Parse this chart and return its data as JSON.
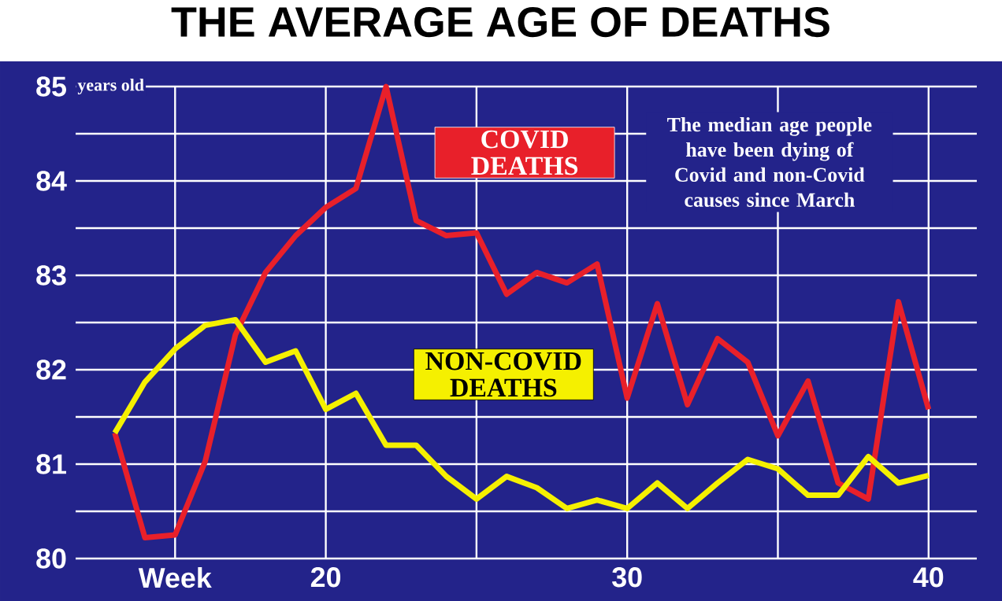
{
  "chart_data": {
    "type": "line",
    "title": "THE AVERAGE AGE OF DEATHS",
    "ylabel": "years old",
    "annotations": [
      "The median age people have been dying of Covid and non-Covid causes since March"
    ],
    "x": [
      13,
      14,
      15,
      16,
      17,
      18,
      19,
      20,
      21,
      22,
      23,
      24,
      25,
      26,
      27,
      28,
      29,
      30,
      31,
      32,
      33,
      34,
      35,
      36,
      37,
      38,
      39,
      40
    ],
    "series": [
      {
        "name": "COVID DEATHS",
        "color": "#e8202a",
        "values": [
          81.33,
          80.22,
          80.25,
          81.03,
          82.37,
          83.03,
          83.42,
          83.72,
          83.92,
          85,
          83.58,
          83.42,
          83.45,
          82.8,
          83.03,
          82.92,
          83.12,
          81.7,
          82.7,
          81.63,
          82.33,
          82.08,
          81.3,
          81.88,
          80.8,
          80.63,
          82.72,
          81.58
        ]
      },
      {
        "name": "NON-COVID DEATHS",
        "color": "#f5f000",
        "values": [
          81.33,
          81.87,
          82.22,
          82.47,
          82.53,
          82.08,
          82.2,
          81.58,
          81.75,
          81.2,
          81.2,
          80.87,
          80.63,
          80.87,
          80.75,
          80.53,
          80.62,
          80.53,
          80.8,
          80.53,
          80.8,
          81.05,
          80.95,
          80.67,
          80.67,
          81.08,
          80.8,
          80.88
        ]
      }
    ],
    "xlim": [
      11.7,
      41.6
    ],
    "xticks": [
      {
        "value": 15,
        "label": "Week"
      },
      20,
      {
        "value": 25,
        "label": null
      },
      30,
      {
        "value": 35,
        "label": null
      },
      40
    ],
    "ylim": [
      80,
      85
    ],
    "yticks": [
      80,
      {
        "value": 80.5,
        "label": null
      },
      81,
      {
        "value": 81.5,
        "label": null
      },
      82,
      {
        "value": 82.5,
        "label": null
      },
      83,
      {
        "value": 83.5,
        "label": null
      },
      84,
      {
        "value": 84.5,
        "label": null
      },
      85
    ],
    "grid": true,
    "legend": false,
    "marker": "none",
    "line_style": "solid"
  }
}
